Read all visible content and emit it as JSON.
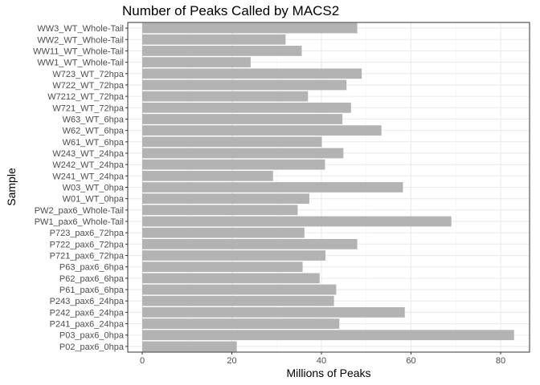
{
  "chart_data": {
    "type": "bar",
    "orientation": "horizontal",
    "title": "Number of Peaks Called by MACS2",
    "xlabel": "Millions of Peaks",
    "ylabel": "Sample",
    "xlim": [
      0,
      85
    ],
    "xticks": [
      "0",
      "20",
      "40",
      "60",
      "80"
    ],
    "grid": true,
    "bar_color": "#b3b3b3",
    "categories": [
      "WW3_WT_Whole-Tail",
      "WW2_WT_Whole-Tail",
      "WW11_WT_Whole-Tail",
      "WW1_WT_Whole-Tail",
      "W723_WT_72hpa",
      "W722_WT_72hpa",
      "W7212_WT_72hpa",
      "W721_WT_72hpa",
      "W63_WT_6hpa",
      "W62_WT_6hpa",
      "W61_WT_6hpa",
      "W243_WT_24hpa",
      "W242_WT_24hpa",
      "W241_WT_24hpa",
      "W03_WT_0hpa",
      "W01_WT_0hpa",
      "PW2_pax6_Whole-Tail",
      "PW1_pax6_Whole-Tail",
      "P723_pax6_72hpa",
      "P722_pax6_72hpa",
      "P721_pax6_72hpa",
      "P63_pax6_6hpa",
      "P62_pax6_6hpa",
      "P61_pax6_6hpa",
      "P243_pax6_24hpa",
      "P242_pax6_24hpa",
      "P241_pax6_24hpa",
      "P03_pax6_0hpa",
      "P02_pax6_0hpa"
    ],
    "values": [
      48,
      32,
      35.6,
      24.2,
      49,
      45.6,
      37,
      46.6,
      44.7,
      53.4,
      40.1,
      44.9,
      40.8,
      29.2,
      58.2,
      37.3,
      34.7,
      69,
      36.2,
      48,
      40.9,
      35.8,
      39.6,
      43.3,
      42.8,
      58.6,
      44,
      83,
      21.1
    ]
  }
}
